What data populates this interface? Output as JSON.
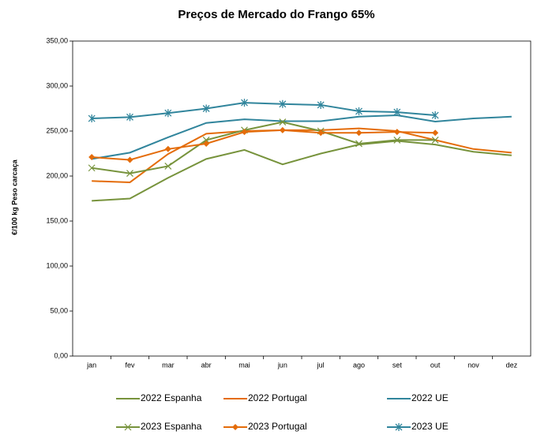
{
  "chart_data": {
    "type": "line",
    "title": "Preços de Mercado do Frango 65%",
    "y_label": "€/100 kg Peso carcaça",
    "categories": [
      "jan",
      "fev",
      "mar",
      "abr",
      "mai",
      "jun",
      "jul",
      "ago",
      "set",
      "out",
      "nov",
      "dez"
    ],
    "ylim": [
      0,
      350
    ],
    "yticks": [
      {
        "value": 0,
        "label": "0,00"
      },
      {
        "value": 50,
        "label": "50,00"
      },
      {
        "value": 100,
        "label": "100,00"
      },
      {
        "value": 150,
        "label": "150,00"
      },
      {
        "value": 200,
        "label": "200,00"
      },
      {
        "value": 250,
        "label": "250,00"
      },
      {
        "value": 300,
        "label": "300,00"
      },
      {
        "value": 350,
        "label": "350,00"
      }
    ],
    "grid": false,
    "legend": "bottom",
    "series": [
      {
        "name": "2022 Espanha",
        "color": "#77933c",
        "marker": "none",
        "values": [
          172.5,
          175,
          198,
          219,
          229,
          213,
          225,
          235,
          239,
          235,
          227,
          223
        ]
      },
      {
        "name": "2022 Portugal",
        "color": "#e46c0a",
        "marker": "none",
        "values": [
          194.5,
          193,
          224.5,
          247,
          250,
          251,
          251,
          253,
          250,
          240,
          230,
          226
        ]
      },
      {
        "name": "2022 UE",
        "color": "#31859c",
        "marker": "none",
        "values": [
          219,
          226,
          243,
          259,
          263,
          261,
          261,
          266,
          267.5,
          260.5,
          264,
          266
        ]
      },
      {
        "name": "2023 Espanha",
        "color": "#77933c",
        "marker": "x",
        "values": [
          209,
          203,
          211,
          240,
          251,
          260,
          250,
          236,
          240,
          240,
          null,
          null
        ]
      },
      {
        "name": "2023 Portugal",
        "color": "#e46c0a",
        "marker": "diamond",
        "values": [
          221,
          218,
          230,
          236,
          249,
          251,
          248,
          248,
          249,
          248,
          null,
          null
        ]
      },
      {
        "name": "2023 UE",
        "color": "#31859c",
        "marker": "star",
        "values": [
          264,
          265.5,
          270,
          275,
          281.5,
          280,
          279,
          272,
          271,
          267.5,
          null,
          null
        ]
      }
    ]
  }
}
